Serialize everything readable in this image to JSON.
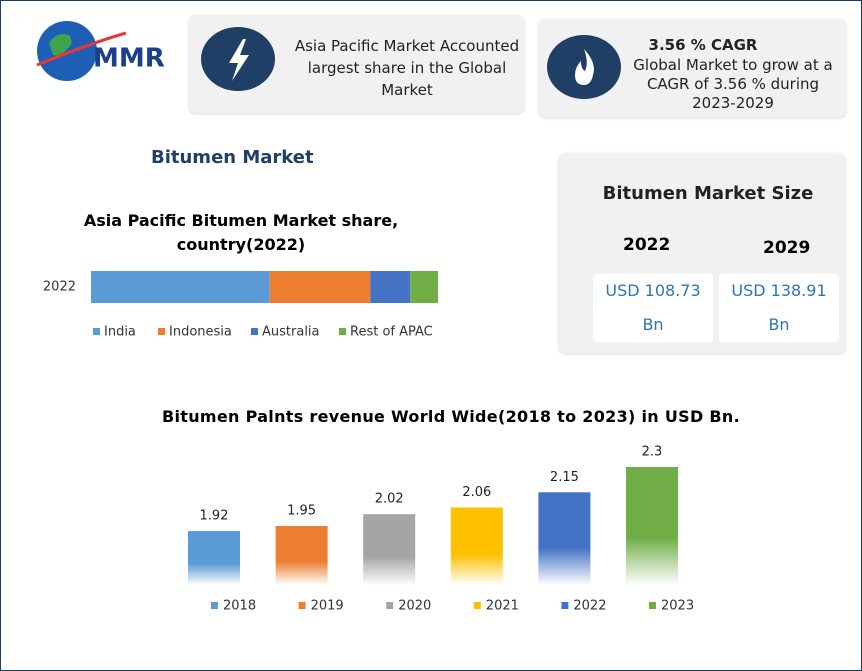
{
  "logo": {
    "text": "MMR"
  },
  "highlights": [
    {
      "text": "Asia Pacific Market Accounted largest share in the Global Market"
    },
    {
      "title": "3.56 % CAGR",
      "text": "Global Market to grow at a CAGR of 3.56 % during 2023-2029"
    }
  ],
  "section_title": "Bitumen Market",
  "market_size": {
    "title": "Bitumen Market Size",
    "years": [
      "2022",
      "2029"
    ],
    "values": [
      "USD 108.73 Bn",
      "USD 138.91 Bn"
    ]
  },
  "chart_data": [
    {
      "type": "hbar_stacked",
      "title": "Asia Pacific Bitumen Market share, country(2022)",
      "categories": [
        "2022"
      ],
      "series": [
        {
          "name": "India",
          "color": "#5b9bd5",
          "values": [
            51.5
          ]
        },
        {
          "name": "Indonesia",
          "color": "#ed7d31",
          "values": [
            29
          ]
        },
        {
          "name": "Australia",
          "color": "#4472c4",
          "values": [
            11.5
          ]
        },
        {
          "name": "Rest of APAC",
          "color": "#70ad47",
          "values": [
            8
          ]
        }
      ]
    },
    {
      "type": "bar",
      "title": "Bitumen Palnts revenue World Wide(2018 to 2023) in USD Bn.",
      "categories": [
        "2018",
        "2019",
        "2020",
        "2021",
        "2022",
        "2023"
      ],
      "values": [
        1.92,
        1.95,
        2.02,
        2.06,
        2.15,
        2.3
      ],
      "colors": [
        "#5b9bd5",
        "#ed7d31",
        "#a5a5a5",
        "#ffc000",
        "#4472c4",
        "#70ad47"
      ],
      "ylim": [
        1.6,
        2.3
      ]
    }
  ]
}
